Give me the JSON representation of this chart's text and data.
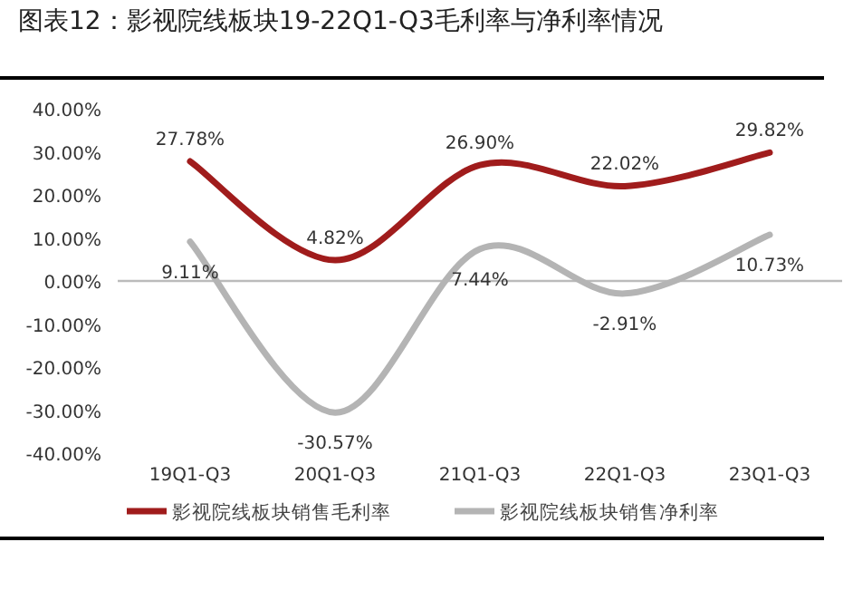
{
  "chart_data": {
    "type": "line",
    "title": "图表12：影视院线板块19-22Q1-Q3毛利率与净利率情况",
    "categories": [
      "19Q1-Q3",
      "20Q1-Q3",
      "21Q1-Q3",
      "22Q1-Q3",
      "23Q1-Q3"
    ],
    "series": [
      {
        "name": "影视院线板块销售毛利率",
        "color": "#a01c1c",
        "values": [
          27.78,
          4.82,
          26.9,
          22.02,
          29.82
        ],
        "value_labels": [
          "27.78%",
          "4.82%",
          "26.90%",
          "22.02%",
          "29.82%"
        ]
      },
      {
        "name": "影视院线板块销售净利率",
        "color": "#b4b4b4",
        "values": [
          9.11,
          -30.57,
          7.44,
          -2.91,
          10.73
        ],
        "value_labels": [
          "9.11%",
          "-30.57%",
          "7.44%",
          "-2.91%",
          "10.73%"
        ]
      }
    ],
    "ylim": [
      -40,
      40
    ],
    "yticks": [
      {
        "value": 40,
        "label": "40.00%"
      },
      {
        "value": 30,
        "label": "30.00%"
      },
      {
        "value": 20,
        "label": "20.00%"
      },
      {
        "value": 10,
        "label": "10.00%"
      },
      {
        "value": 0,
        "label": "0.00%"
      },
      {
        "value": -10,
        "label": "-10.00%"
      },
      {
        "value": -20,
        "label": "-20.00%"
      },
      {
        "value": -30,
        "label": "-30.00%"
      },
      {
        "value": -40,
        "label": "-40.00%"
      }
    ],
    "legend": "bottom",
    "marker": "none",
    "line_style": "solid"
  }
}
